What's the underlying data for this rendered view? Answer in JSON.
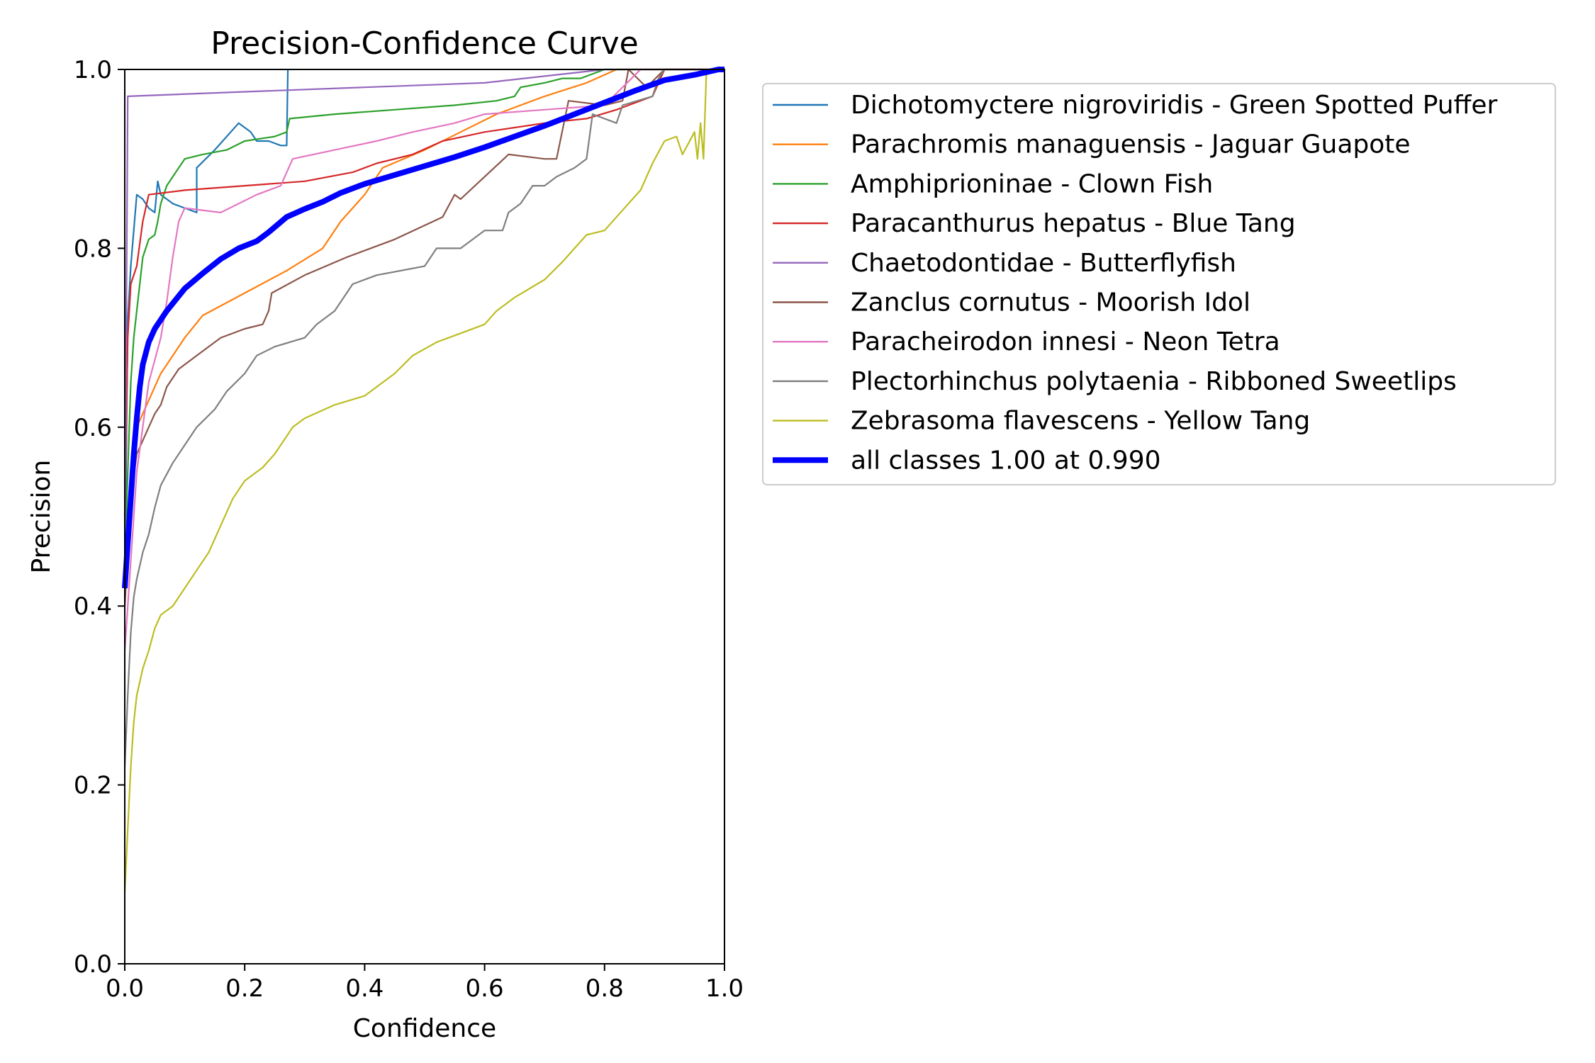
{
  "chart_data": {
    "type": "line",
    "title": "Precision-Confidence Curve",
    "xlabel": "Confidence",
    "ylabel": "Precision",
    "xlim": [
      0,
      1
    ],
    "ylim": [
      0,
      1
    ],
    "xticks": [
      "0.0",
      "0.2",
      "0.4",
      "0.6",
      "0.8",
      "1.0"
    ],
    "yticks": [
      "0.0",
      "0.2",
      "0.4",
      "0.6",
      "0.8",
      "1.0"
    ],
    "grid": false,
    "legend_placement": "outside-right-top",
    "series": [
      {
        "name": "Dichotomyctere nigroviridis - Green Spotted Puffer",
        "color": "#1f77b4",
        "points": [
          [
            0.0,
            0.42
          ],
          [
            0.005,
            0.72
          ],
          [
            0.01,
            0.78
          ],
          [
            0.02,
            0.86
          ],
          [
            0.03,
            0.855
          ],
          [
            0.04,
            0.845
          ],
          [
            0.05,
            0.84
          ],
          [
            0.055,
            0.875
          ],
          [
            0.06,
            0.86
          ],
          [
            0.08,
            0.85
          ],
          [
            0.1,
            0.845
          ],
          [
            0.12,
            0.84
          ],
          [
            0.12,
            0.89
          ],
          [
            0.15,
            0.91
          ],
          [
            0.19,
            0.94
          ],
          [
            0.21,
            0.93
          ],
          [
            0.22,
            0.92
          ],
          [
            0.24,
            0.92
          ],
          [
            0.26,
            0.915
          ],
          [
            0.27,
            0.915
          ],
          [
            0.272,
            1.0
          ]
        ]
      },
      {
        "name": "Parachromis managuensis - Jaguar Guapote",
        "color": "#ff7f0e",
        "points": [
          [
            0.0,
            0.45
          ],
          [
            0.02,
            0.6
          ],
          [
            0.04,
            0.63
          ],
          [
            0.06,
            0.66
          ],
          [
            0.1,
            0.7
          ],
          [
            0.13,
            0.725
          ],
          [
            0.2,
            0.75
          ],
          [
            0.27,
            0.775
          ],
          [
            0.33,
            0.8
          ],
          [
            0.36,
            0.83
          ],
          [
            0.4,
            0.86
          ],
          [
            0.43,
            0.89
          ],
          [
            0.5,
            0.91
          ],
          [
            0.56,
            0.93
          ],
          [
            0.62,
            0.95
          ],
          [
            0.7,
            0.97
          ],
          [
            0.77,
            0.985
          ],
          [
            0.82,
            1.0
          ],
          [
            1.0,
            1.0
          ]
        ]
      },
      {
        "name": "Amphiprioninae - Clown Fish",
        "color": "#2ca02c",
        "points": [
          [
            0.0,
            0.45
          ],
          [
            0.01,
            0.65
          ],
          [
            0.015,
            0.7
          ],
          [
            0.02,
            0.73
          ],
          [
            0.025,
            0.76
          ],
          [
            0.03,
            0.79
          ],
          [
            0.035,
            0.8
          ],
          [
            0.04,
            0.81
          ],
          [
            0.05,
            0.815
          ],
          [
            0.055,
            0.83
          ],
          [
            0.06,
            0.85
          ],
          [
            0.07,
            0.87
          ],
          [
            0.08,
            0.88
          ],
          [
            0.09,
            0.89
          ],
          [
            0.1,
            0.9
          ],
          [
            0.13,
            0.905
          ],
          [
            0.17,
            0.91
          ],
          [
            0.2,
            0.92
          ],
          [
            0.25,
            0.925
          ],
          [
            0.27,
            0.93
          ],
          [
            0.275,
            0.945
          ],
          [
            0.35,
            0.95
          ],
          [
            0.45,
            0.955
          ],
          [
            0.55,
            0.96
          ],
          [
            0.62,
            0.965
          ],
          [
            0.65,
            0.97
          ],
          [
            0.66,
            0.98
          ],
          [
            0.7,
            0.985
          ],
          [
            0.73,
            0.99
          ],
          [
            0.76,
            0.99
          ],
          [
            0.8,
            1.0
          ],
          [
            1.0,
            1.0
          ]
        ]
      },
      {
        "name": "Paracanthurus hepatus - Blue Tang",
        "color": "#d62728",
        "points": [
          [
            0.0,
            0.5
          ],
          [
            0.005,
            0.7
          ],
          [
            0.01,
            0.76
          ],
          [
            0.02,
            0.78
          ],
          [
            0.03,
            0.83
          ],
          [
            0.04,
            0.86
          ],
          [
            0.1,
            0.865
          ],
          [
            0.2,
            0.87
          ],
          [
            0.3,
            0.875
          ],
          [
            0.38,
            0.885
          ],
          [
            0.42,
            0.895
          ],
          [
            0.48,
            0.905
          ],
          [
            0.53,
            0.92
          ],
          [
            0.6,
            0.93
          ],
          [
            0.7,
            0.94
          ],
          [
            0.77,
            0.945
          ],
          [
            0.82,
            0.955
          ],
          [
            0.86,
            0.965
          ],
          [
            0.88,
            0.97
          ],
          [
            0.9,
            1.0
          ],
          [
            1.0,
            1.0
          ]
        ]
      },
      {
        "name": "Chaetodontidae - Butterflyfish",
        "color": "#9467bd",
        "points": [
          [
            0.0,
            0.45
          ],
          [
            0.005,
            0.97
          ],
          [
            0.2,
            0.975
          ],
          [
            0.4,
            0.98
          ],
          [
            0.6,
            0.985
          ],
          [
            0.8,
            1.0
          ],
          [
            1.0,
            1.0
          ]
        ]
      },
      {
        "name": "Zanclus cornutus - Moorish Idol",
        "color": "#8c564b",
        "points": [
          [
            0.0,
            0.4
          ],
          [
            0.01,
            0.52
          ],
          [
            0.02,
            0.57
          ],
          [
            0.03,
            0.585
          ],
          [
            0.04,
            0.6
          ],
          [
            0.05,
            0.615
          ],
          [
            0.06,
            0.625
          ],
          [
            0.07,
            0.645
          ],
          [
            0.09,
            0.665
          ],
          [
            0.12,
            0.68
          ],
          [
            0.16,
            0.7
          ],
          [
            0.2,
            0.71
          ],
          [
            0.23,
            0.715
          ],
          [
            0.24,
            0.73
          ],
          [
            0.245,
            0.75
          ],
          [
            0.3,
            0.77
          ],
          [
            0.37,
            0.79
          ],
          [
            0.45,
            0.81
          ],
          [
            0.53,
            0.835
          ],
          [
            0.55,
            0.86
          ],
          [
            0.56,
            0.855
          ],
          [
            0.6,
            0.88
          ],
          [
            0.64,
            0.905
          ],
          [
            0.7,
            0.9
          ],
          [
            0.72,
            0.9
          ],
          [
            0.74,
            0.965
          ],
          [
            0.8,
            0.96
          ],
          [
            0.83,
            0.965
          ],
          [
            0.84,
            1.0
          ],
          [
            0.87,
            0.98
          ],
          [
            0.9,
            1.0
          ],
          [
            1.0,
            1.0
          ]
        ]
      },
      {
        "name": "Paracheirodon innesi - Neon Tetra",
        "color": "#e377c2",
        "points": [
          [
            0.0,
            0.35
          ],
          [
            0.02,
            0.55
          ],
          [
            0.04,
            0.65
          ],
          [
            0.06,
            0.7
          ],
          [
            0.07,
            0.74
          ],
          [
            0.08,
            0.79
          ],
          [
            0.09,
            0.83
          ],
          [
            0.1,
            0.845
          ],
          [
            0.16,
            0.84
          ],
          [
            0.22,
            0.86
          ],
          [
            0.26,
            0.87
          ],
          [
            0.28,
            0.9
          ],
          [
            0.35,
            0.91
          ],
          [
            0.42,
            0.92
          ],
          [
            0.48,
            0.93
          ],
          [
            0.55,
            0.94
          ],
          [
            0.6,
            0.95
          ],
          [
            0.7,
            0.955
          ],
          [
            0.8,
            0.96
          ],
          [
            0.86,
            1.0
          ],
          [
            1.0,
            1.0
          ]
        ]
      },
      {
        "name": "Plectorhinchus polytaenia - Ribboned Sweetlips",
        "color": "#7f7f7f",
        "points": [
          [
            0.0,
            0.22
          ],
          [
            0.005,
            0.3
          ],
          [
            0.01,
            0.37
          ],
          [
            0.015,
            0.41
          ],
          [
            0.02,
            0.43
          ],
          [
            0.03,
            0.46
          ],
          [
            0.04,
            0.48
          ],
          [
            0.05,
            0.51
          ],
          [
            0.06,
            0.535
          ],
          [
            0.08,
            0.56
          ],
          [
            0.1,
            0.58
          ],
          [
            0.12,
            0.6
          ],
          [
            0.15,
            0.62
          ],
          [
            0.17,
            0.64
          ],
          [
            0.2,
            0.66
          ],
          [
            0.22,
            0.68
          ],
          [
            0.25,
            0.69
          ],
          [
            0.3,
            0.7
          ],
          [
            0.32,
            0.715
          ],
          [
            0.35,
            0.73
          ],
          [
            0.38,
            0.76
          ],
          [
            0.42,
            0.77
          ],
          [
            0.5,
            0.78
          ],
          [
            0.52,
            0.8
          ],
          [
            0.56,
            0.8
          ],
          [
            0.6,
            0.82
          ],
          [
            0.63,
            0.82
          ],
          [
            0.64,
            0.84
          ],
          [
            0.66,
            0.85
          ],
          [
            0.68,
            0.87
          ],
          [
            0.7,
            0.87
          ],
          [
            0.72,
            0.88
          ],
          [
            0.75,
            0.89
          ],
          [
            0.77,
            0.9
          ],
          [
            0.78,
            0.95
          ],
          [
            0.82,
            0.94
          ],
          [
            0.83,
            0.96
          ],
          [
            0.88,
            0.97
          ],
          [
            0.89,
            0.99
          ],
          [
            0.9,
            1.0
          ],
          [
            1.0,
            1.0
          ]
        ]
      },
      {
        "name": "Zebrasoma flavescens - Yellow Tang",
        "color": "#bcbd22",
        "points": [
          [
            0.0,
            0.08
          ],
          [
            0.005,
            0.15
          ],
          [
            0.01,
            0.22
          ],
          [
            0.015,
            0.27
          ],
          [
            0.02,
            0.3
          ],
          [
            0.03,
            0.33
          ],
          [
            0.04,
            0.35
          ],
          [
            0.05,
            0.375
          ],
          [
            0.06,
            0.39
          ],
          [
            0.08,
            0.4
          ],
          [
            0.1,
            0.42
          ],
          [
            0.12,
            0.44
          ],
          [
            0.14,
            0.46
          ],
          [
            0.16,
            0.49
          ],
          [
            0.18,
            0.52
          ],
          [
            0.2,
            0.54
          ],
          [
            0.23,
            0.555
          ],
          [
            0.25,
            0.57
          ],
          [
            0.28,
            0.6
          ],
          [
            0.3,
            0.61
          ],
          [
            0.35,
            0.625
          ],
          [
            0.4,
            0.635
          ],
          [
            0.42,
            0.645
          ],
          [
            0.45,
            0.66
          ],
          [
            0.48,
            0.68
          ],
          [
            0.52,
            0.695
          ],
          [
            0.56,
            0.705
          ],
          [
            0.6,
            0.715
          ],
          [
            0.62,
            0.73
          ],
          [
            0.65,
            0.745
          ],
          [
            0.7,
            0.765
          ],
          [
            0.73,
            0.785
          ],
          [
            0.75,
            0.8
          ],
          [
            0.77,
            0.815
          ],
          [
            0.8,
            0.82
          ],
          [
            0.82,
            0.835
          ],
          [
            0.84,
            0.85
          ],
          [
            0.86,
            0.865
          ],
          [
            0.88,
            0.895
          ],
          [
            0.9,
            0.92
          ],
          [
            0.92,
            0.925
          ],
          [
            0.93,
            0.905
          ],
          [
            0.95,
            0.93
          ],
          [
            0.955,
            0.9
          ],
          [
            0.96,
            0.94
          ],
          [
            0.965,
            0.9
          ],
          [
            0.97,
            1.0
          ],
          [
            1.0,
            1.0
          ]
        ]
      },
      {
        "name": "all classes 1.00 at 0.990",
        "color": "#0000ff",
        "bold": true,
        "points": [
          [
            0.0,
            0.42
          ],
          [
            0.005,
            0.47
          ],
          [
            0.01,
            0.52
          ],
          [
            0.015,
            0.57
          ],
          [
            0.02,
            0.61
          ],
          [
            0.025,
            0.645
          ],
          [
            0.03,
            0.67
          ],
          [
            0.04,
            0.695
          ],
          [
            0.05,
            0.71
          ],
          [
            0.07,
            0.73
          ],
          [
            0.1,
            0.755
          ],
          [
            0.13,
            0.772
          ],
          [
            0.16,
            0.788
          ],
          [
            0.19,
            0.8
          ],
          [
            0.22,
            0.808
          ],
          [
            0.24,
            0.818
          ],
          [
            0.27,
            0.835
          ],
          [
            0.3,
            0.844
          ],
          [
            0.33,
            0.852
          ],
          [
            0.36,
            0.862
          ],
          [
            0.4,
            0.872
          ],
          [
            0.45,
            0.882
          ],
          [
            0.5,
            0.892
          ],
          [
            0.55,
            0.902
          ],
          [
            0.6,
            0.913
          ],
          [
            0.65,
            0.925
          ],
          [
            0.7,
            0.937
          ],
          [
            0.75,
            0.95
          ],
          [
            0.8,
            0.963
          ],
          [
            0.85,
            0.976
          ],
          [
            0.9,
            0.988
          ],
          [
            0.95,
            0.994
          ],
          [
            0.99,
            1.0
          ],
          [
            1.0,
            1.0
          ]
        ]
      }
    ]
  }
}
